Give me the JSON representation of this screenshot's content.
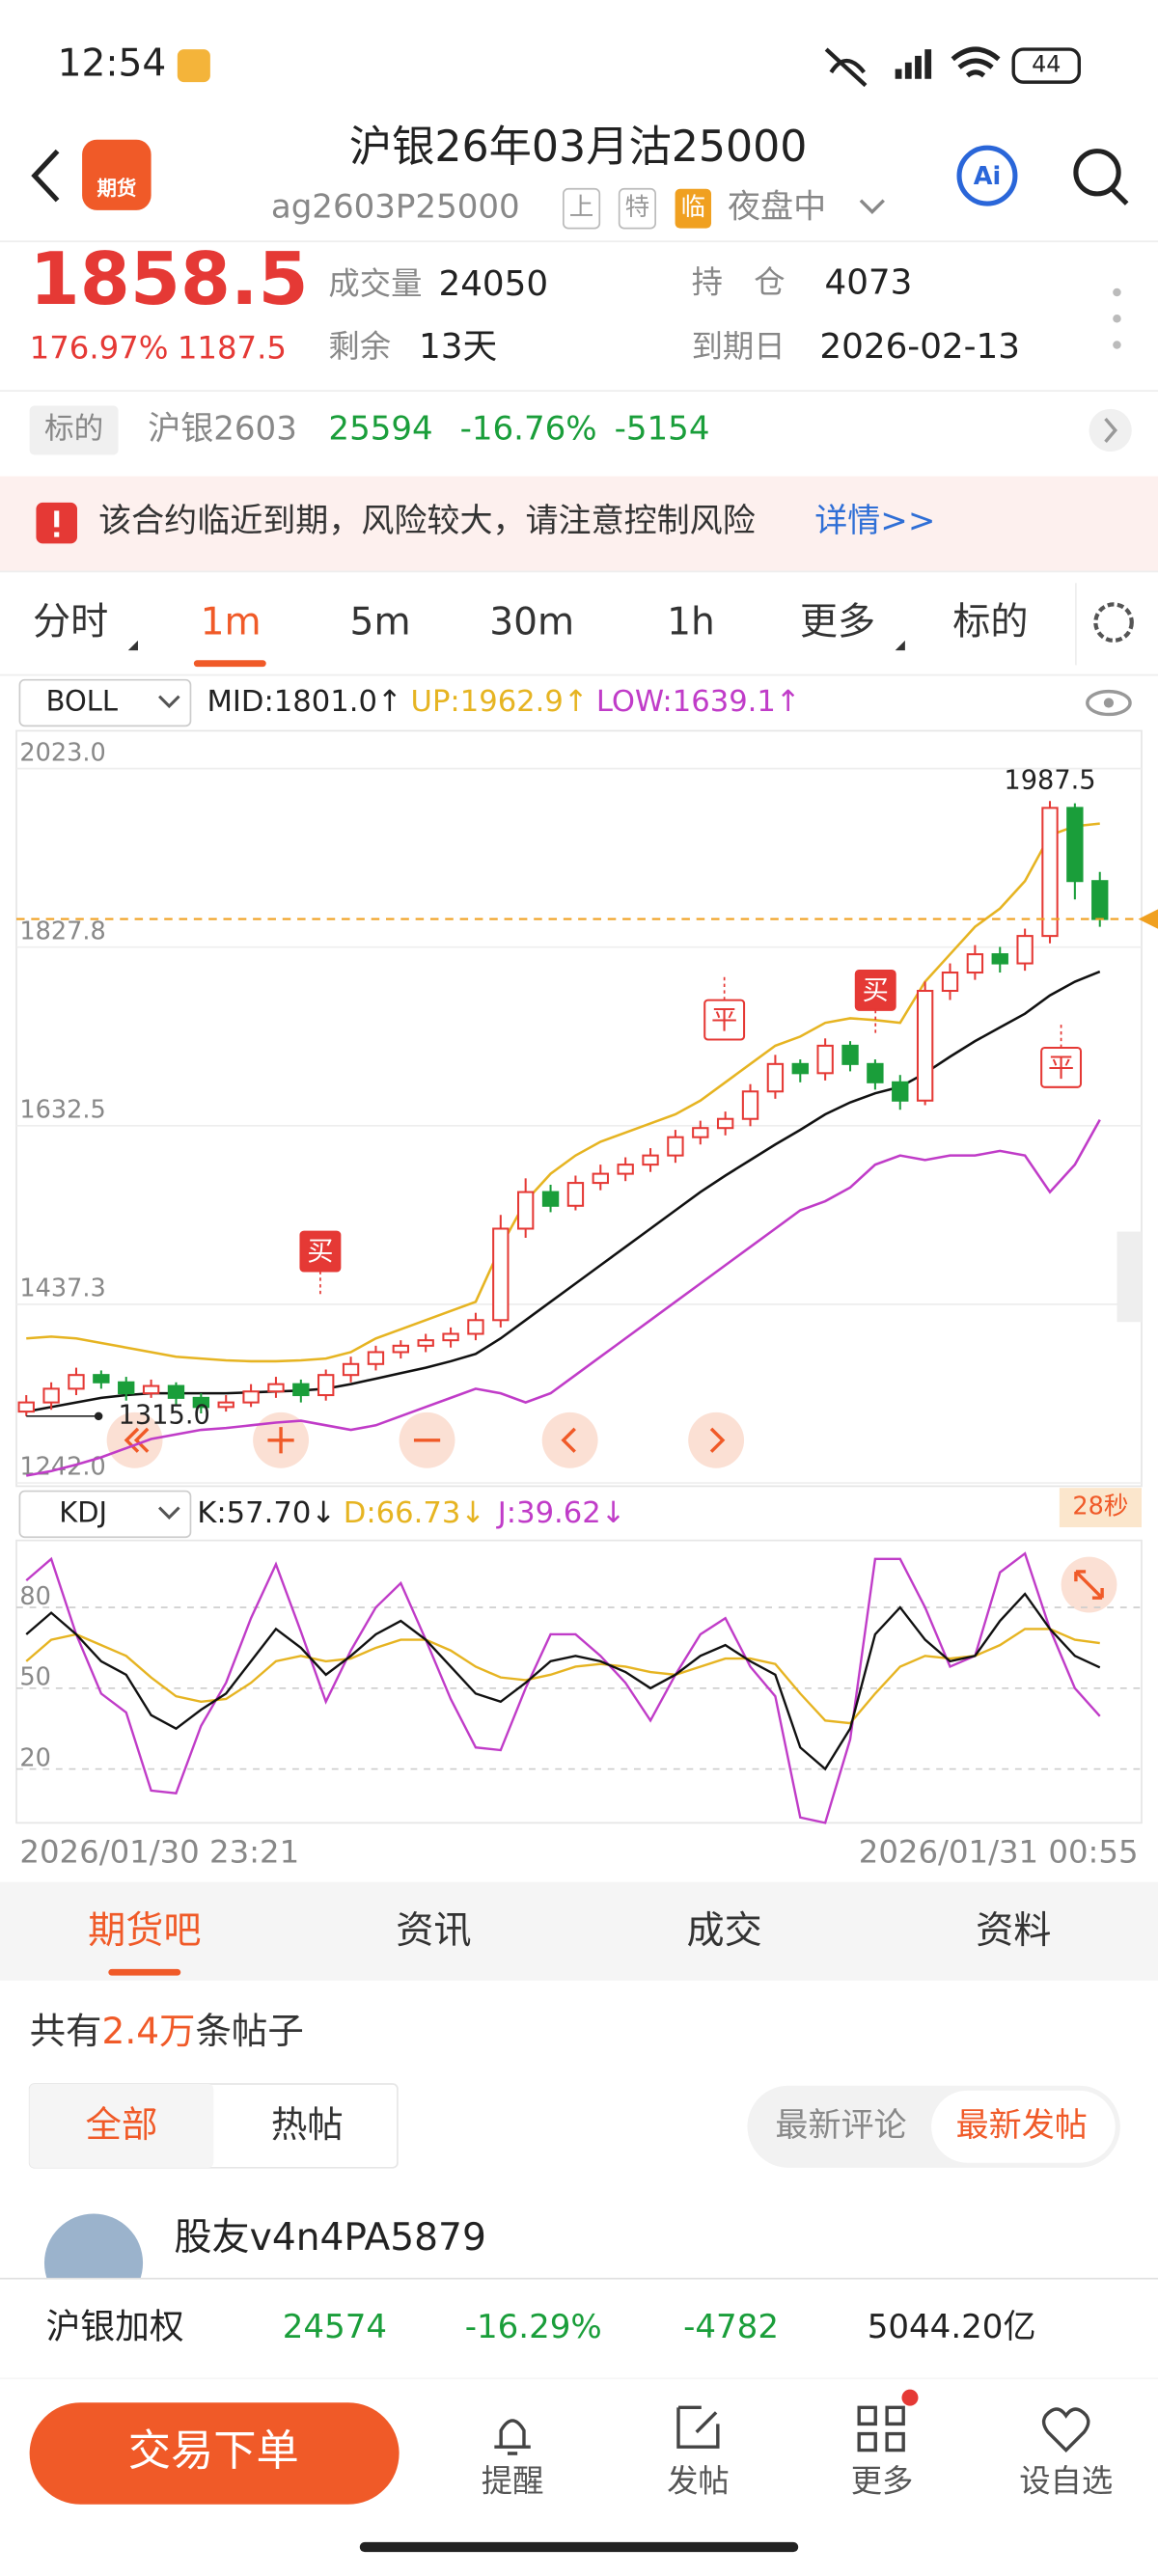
{
  "status": {
    "time": "12:54",
    "battery": "44"
  },
  "header": {
    "logo": "期货",
    "title": "沪银26年03月沽25000",
    "code": "ag2603P25000",
    "tags": [
      "上",
      "特",
      "临"
    ],
    "session": "夜盘中",
    "ai": "Ai"
  },
  "quote": {
    "price": "1858.5",
    "change_pct": "176.97%",
    "change": "1187.5",
    "stats": [
      {
        "label": "成交量",
        "value": "24050"
      },
      {
        "label": "剩余",
        "value": "13天"
      },
      {
        "label": "持　仓",
        "value": "4073"
      },
      {
        "label": "到期日",
        "value": "2026-02-13"
      }
    ]
  },
  "underlying": {
    "label": "标的",
    "name": "沪银2603",
    "price": "25594",
    "pct": "-16.76%",
    "change": "-5154"
  },
  "warning": {
    "text": "该合约临近到期，风险较大，请注意控制风险",
    "link": "详情>>"
  },
  "tabs": [
    "分时",
    "1m",
    "5m",
    "30m",
    "1h",
    "更多",
    "标的"
  ],
  "boll": {
    "name": "BOLL",
    "mid": "MID:1801.0↑",
    "up": "UP:1962.9↑",
    "low": "LOW:1639.1↑"
  },
  "kline": {
    "ylim": [
      1242,
      2023
    ],
    "yticks": [
      {
        "value": 2023,
        "label": "2023.0"
      },
      {
        "value": 1827.8,
        "label": "1827.8"
      },
      {
        "value": 1632.5,
        "label": "1632.5"
      },
      {
        "value": 1437.3,
        "label": "1437.3"
      },
      {
        "value": 1242,
        "label": "1242.0"
      }
    ],
    "open": [
      1320,
      1330,
      1345,
      1360,
      1352,
      1340,
      1348,
      1335,
      1325,
      1330,
      1342,
      1350,
      1338,
      1360,
      1372,
      1385,
      1392,
      1398,
      1405,
      1420,
      1520,
      1560,
      1545,
      1570,
      1580,
      1590,
      1600,
      1620,
      1630,
      1640,
      1670,
      1700,
      1690,
      1720,
      1700,
      1680,
      1660,
      1780,
      1800,
      1820,
      1810,
      1840,
      1980,
      1900
    ],
    "high": [
      1338,
      1352,
      1368,
      1365,
      1358,
      1355,
      1352,
      1340,
      1338,
      1350,
      1358,
      1355,
      1366,
      1380,
      1392,
      1398,
      1405,
      1412,
      1428,
      1535,
      1575,
      1568,
      1578,
      1590,
      1598,
      1608,
      1628,
      1638,
      1648,
      1678,
      1710,
      1705,
      1728,
      1725,
      1705,
      1688,
      1790,
      1810,
      1830,
      1828,
      1848,
      1987.5,
      1985,
      1910
    ],
    "low": [
      1315,
      1322,
      1338,
      1345,
      1332,
      1335,
      1328,
      1318,
      1320,
      1325,
      1335,
      1330,
      1332,
      1352,
      1365,
      1378,
      1385,
      1390,
      1398,
      1412,
      1510,
      1538,
      1540,
      1562,
      1572,
      1582,
      1592,
      1612,
      1622,
      1632,
      1662,
      1680,
      1682,
      1692,
      1672,
      1650,
      1655,
      1770,
      1792,
      1800,
      1802,
      1832,
      1880,
      1850
    ],
    "close": [
      1330,
      1345,
      1360,
      1352,
      1340,
      1348,
      1335,
      1325,
      1330,
      1342,
      1350,
      1338,
      1360,
      1372,
      1385,
      1392,
      1398,
      1405,
      1420,
      1520,
      1560,
      1545,
      1570,
      1580,
      1590,
      1600,
      1620,
      1630,
      1640,
      1670,
      1700,
      1690,
      1720,
      1700,
      1680,
      1660,
      1780,
      1800,
      1820,
      1810,
      1840,
      1980,
      1900,
      1858.5
    ],
    "mid": [
      1320,
      1325,
      1330,
      1335,
      1338,
      1340,
      1340,
      1340,
      1340,
      1341,
      1342,
      1343,
      1345,
      1350,
      1356,
      1362,
      1368,
      1375,
      1383,
      1400,
      1420,
      1440,
      1460,
      1480,
      1500,
      1520,
      1540,
      1560,
      1578,
      1595,
      1612,
      1628,
      1645,
      1658,
      1668,
      1675,
      1690,
      1708,
      1725,
      1740,
      1755,
      1775,
      1790,
      1801.0
    ],
    "up": [
      1400,
      1402,
      1400,
      1395,
      1390,
      1385,
      1380,
      1378,
      1376,
      1375,
      1375,
      1376,
      1378,
      1385,
      1400,
      1410,
      1420,
      1430,
      1440,
      1500,
      1550,
      1580,
      1600,
      1615,
      1625,
      1635,
      1645,
      1660,
      1680,
      1700,
      1720,
      1730,
      1745,
      1750,
      1748,
      1745,
      1790,
      1820,
      1850,
      1870,
      1900,
      1950,
      1960,
      1962.9
    ],
    "lower": [
      1250,
      1255,
      1262,
      1270,
      1280,
      1290,
      1295,
      1300,
      1302,
      1305,
      1308,
      1310,
      1305,
      1300,
      1305,
      1315,
      1325,
      1335,
      1345,
      1340,
      1330,
      1340,
      1360,
      1380,
      1400,
      1420,
      1440,
      1460,
      1480,
      1500,
      1520,
      1540,
      1550,
      1565,
      1590,
      1600,
      1595,
      1600,
      1600,
      1605,
      1600,
      1560,
      1590,
      1639.1
    ],
    "min_label": "1315.0",
    "trade_marks": [
      "买",
      "平",
      "买",
      "平"
    ]
  },
  "kdj": {
    "name": "KDJ",
    "k_label": "K:57.70↓",
    "d_label": "D:66.73↓",
    "j_label": "J:39.62↓",
    "timer": "28秒",
    "ylim": [
      0,
      100
    ],
    "yticks": [
      80,
      50,
      20
    ],
    "k": [
      70,
      78,
      70,
      60,
      55,
      40,
      35,
      42,
      48,
      60,
      72,
      65,
      55,
      62,
      70,
      75,
      68,
      58,
      48,
      45,
      52,
      60,
      62,
      60,
      56,
      50,
      55,
      62,
      66,
      60,
      55,
      28,
      20,
      35,
      70,
      80,
      68,
      60,
      62,
      75,
      85,
      72,
      62,
      57.7
    ],
    "d": [
      60,
      68,
      70,
      66,
      62,
      54,
      47,
      45,
      46,
      52,
      60,
      62,
      60,
      61,
      65,
      68,
      68,
      64,
      58,
      54,
      53,
      55,
      58,
      59,
      58,
      56,
      55,
      58,
      61,
      61,
      59,
      48,
      38,
      37,
      48,
      58,
      62,
      61,
      62,
      66,
      72,
      72,
      68,
      66.73
    ],
    "j": [
      90,
      98,
      70,
      48,
      41,
      12,
      11,
      36,
      52,
      76,
      96,
      71,
      45,
      64,
      80,
      89,
      68,
      46,
      28,
      27,
      50,
      70,
      70,
      62,
      52,
      38,
      55,
      70,
      76,
      58,
      47,
      2,
      0,
      31,
      98,
      98,
      80,
      58,
      62,
      93,
      100,
      72,
      50,
      39.62
    ]
  },
  "time_range": [
    "2026/01/30 23:21",
    "2026/01/31 00:55"
  ],
  "community": {
    "tabs": [
      "期货吧",
      "资讯",
      "成交",
      "资料"
    ],
    "count_prefix": "共有",
    "count": "2.4万",
    "count_suffix": "条帖子",
    "filters": [
      "全部",
      "热帖"
    ],
    "sorts": [
      "最新评论",
      "最新发帖"
    ],
    "user": "股友v4n4PA5879"
  },
  "ticker": {
    "name": "沪银加权",
    "price": "24574",
    "pct": "-16.29%",
    "change": "-4782",
    "amount": "5044.20亿"
  },
  "bottom": {
    "button": "交易下单",
    "nav": [
      "提醒",
      "发帖",
      "更多",
      "设自选"
    ]
  }
}
